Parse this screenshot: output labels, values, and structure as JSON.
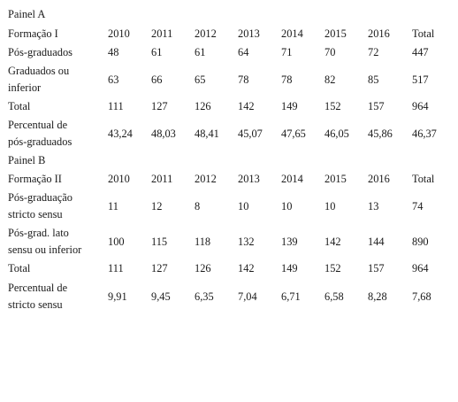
{
  "panel_a": {
    "title": "Painel A",
    "header": [
      "Formação I",
      "2010",
      "2011",
      "2012",
      "2013",
      "2014",
      "2015",
      "2016",
      "Total"
    ],
    "rows": [
      {
        "label": [
          "Pós-graduados"
        ],
        "values": [
          "48",
          "61",
          "61",
          "64",
          "71",
          "70",
          "72",
          "447"
        ]
      },
      {
        "label": [
          "Graduados ou",
          "inferior"
        ],
        "values": [
          "63",
          "66",
          "65",
          "78",
          "78",
          "82",
          "85",
          "517"
        ]
      },
      {
        "label": [
          "Total"
        ],
        "values": [
          "111",
          "127",
          "126",
          "142",
          "149",
          "152",
          "157",
          "964"
        ]
      },
      {
        "label": [
          "Percentual de",
          "pós-graduados"
        ],
        "values": [
          "43,24",
          "48,03",
          "48,41",
          "45,07",
          "47,65",
          "46,05",
          "45,86",
          "46,37"
        ]
      }
    ]
  },
  "panel_b": {
    "title": "Painel B",
    "header": [
      "Formação II",
      "2010",
      "2011",
      "2012",
      "2013",
      "2014",
      "2015",
      "2016",
      "Total"
    ],
    "rows": [
      {
        "label": [
          "Pós-graduação",
          "stricto sensu"
        ],
        "values": [
          "11",
          "12",
          "8",
          "10",
          "10",
          "10",
          "13",
          "74"
        ]
      },
      {
        "label": [
          "Pós-grad. lato",
          "sensu ou inferior"
        ],
        "values": [
          "100",
          "115",
          "118",
          "132",
          "139",
          "142",
          "144",
          "890"
        ]
      },
      {
        "label": [
          "Total"
        ],
        "values": [
          "111",
          "127",
          "126",
          "142",
          "149",
          "152",
          "157",
          "964"
        ]
      },
      {
        "label": [
          "Percentual de",
          "stricto sensu"
        ],
        "values": [
          "9,91",
          "9,45",
          "6,35",
          "7,04",
          "6,71",
          "6,58",
          "8,28",
          "7,68"
        ]
      }
    ]
  }
}
